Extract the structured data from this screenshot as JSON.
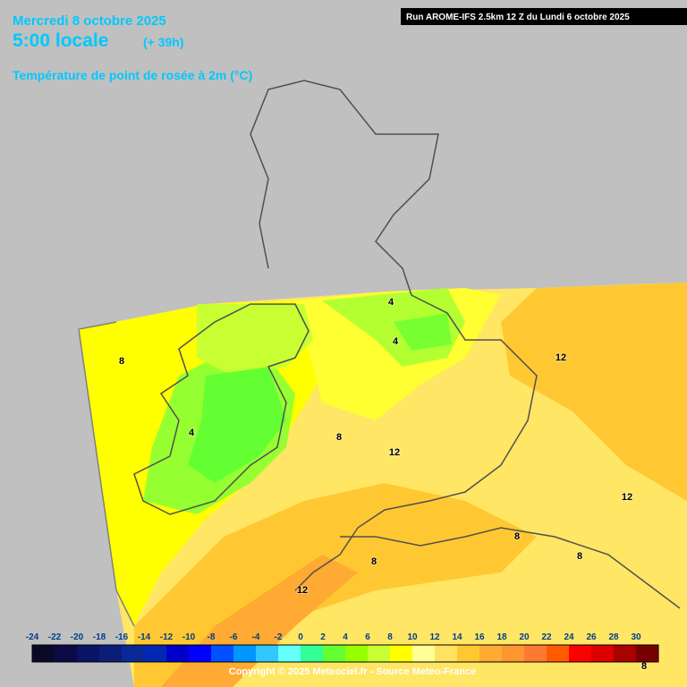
{
  "header": {
    "date": "Mercredi 8 octobre 2025",
    "time": "5:00 locale",
    "offset": "(+ 39h)",
    "parameter": "Température de point de rosée à 2m (°C)",
    "run": "Run AROME-IFS 2.5km 12 Z du Lundi 6 octobre 2025"
  },
  "contour_labels": [
    8,
    4,
    4,
    4,
    8,
    12,
    12,
    12,
    8,
    12,
    8,
    8,
    8
  ],
  "legend": {
    "labels": [
      -24,
      -22,
      -20,
      -18,
      -16,
      -14,
      -12,
      -10,
      -8,
      -6,
      -4,
      -2,
      0,
      2,
      4,
      6,
      8,
      10,
      12,
      14,
      16,
      18,
      20,
      22,
      24,
      26,
      28,
      30
    ],
    "colors": [
      "#0a0a28",
      "#0a0a46",
      "#0a1464",
      "#0a1e78",
      "#0a2896",
      "#0028b4",
      "#0000c8",
      "#0000ff",
      "#0050ff",
      "#0096ff",
      "#32c8ff",
      "#64ffff",
      "#32ff96",
      "#64ff32",
      "#96ff00",
      "#c8ff32",
      "#ffff00",
      "#ffff96",
      "#ffe164",
      "#ffc832",
      "#ffaa32",
      "#ff9632",
      "#ff7832",
      "#ff5a00",
      "#ff0000",
      "#dc0000",
      "#aa0000",
      "#780000"
    ]
  },
  "copyright": "Copyright © 2025 Meteociel.fr - Source Meteo-France"
}
